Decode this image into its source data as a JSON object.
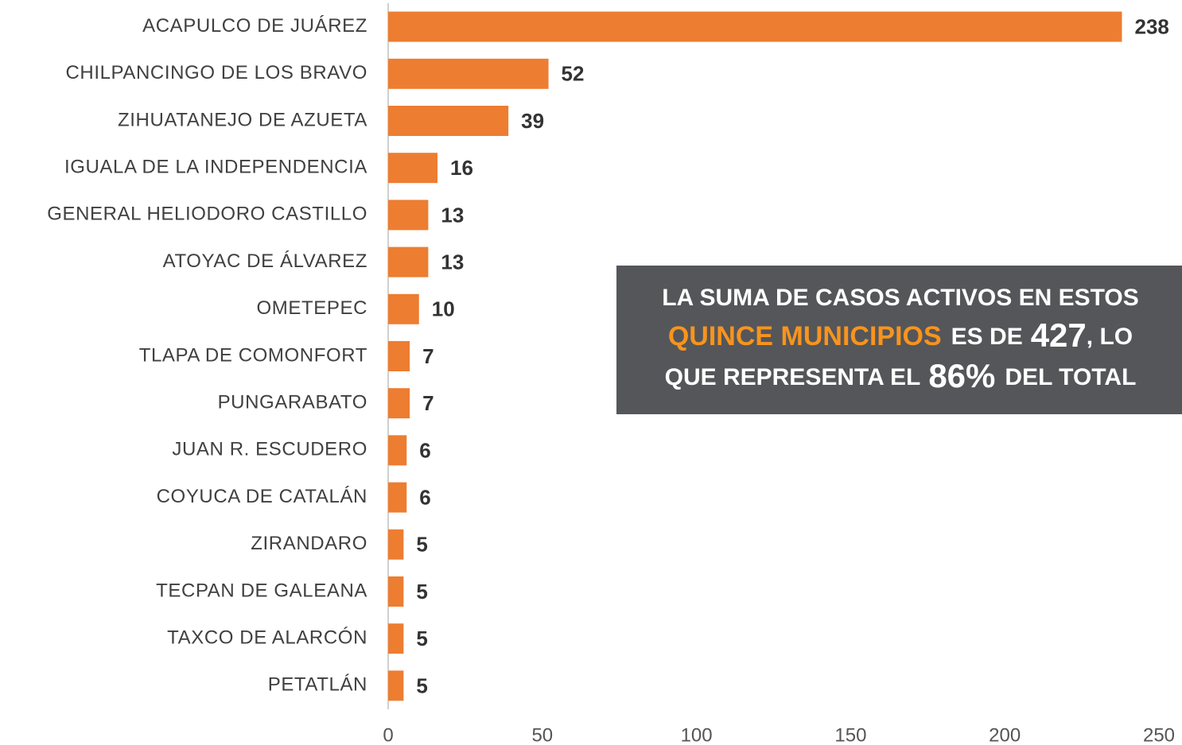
{
  "chart_data": {
    "type": "bar",
    "orientation": "horizontal",
    "categories": [
      "ACAPULCO DE JUÁREZ",
      "CHILPANCINGO DE LOS BRAVO",
      "ZIHUATANEJO DE AZUETA",
      "IGUALA DE LA INDEPENDENCIA",
      "GENERAL HELIODORO CASTILLO",
      "ATOYAC DE ÁLVAREZ",
      "OMETEPEC",
      "TLAPA DE COMONFORT",
      "PUNGARABATO",
      "JUAN R. ESCUDERO",
      "COYUCA DE CATALÁN",
      "ZIRANDARO",
      "TECPAN DE GALEANA",
      "TAXCO DE ALARCÓN",
      "PETATLÁN"
    ],
    "values": [
      238,
      52,
      39,
      16,
      13,
      13,
      10,
      7,
      7,
      6,
      6,
      5,
      5,
      5,
      5
    ],
    "color": "#ed7d31",
    "xlim": [
      0,
      250
    ],
    "xticks": [
      0,
      50,
      100,
      150,
      200,
      250
    ],
    "grid": false,
    "annotation": {
      "line1": "LA SUMA DE CASOS ACTIVOS EN ESTOS",
      "line2": [
        "QUINCE MUNICIPIOS",
        "ES DE",
        "427",
        ", LO"
      ],
      "line3": [
        "QUE REPRESENTA EL",
        "86%",
        "DEL TOTAL"
      ]
    }
  }
}
